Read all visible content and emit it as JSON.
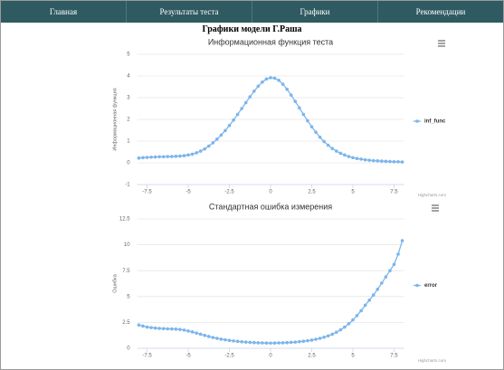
{
  "nav": {
    "items": [
      "Главная",
      "Результаты теста",
      "Графики",
      "Рекомендации"
    ]
  },
  "page_title": "Графики модели Г.Раша",
  "chart_data": [
    {
      "type": "line",
      "title": "Информационная функция теста",
      "y_label": "Информационная функция",
      "credits": "Highcharts.com",
      "grid": true,
      "legend": "right",
      "x": [
        -8,
        -7.75,
        -7.5,
        -7.25,
        -7,
        -6.75,
        -6.5,
        -6.25,
        -6,
        -5.75,
        -5.5,
        -5.25,
        -5,
        -4.75,
        -4.5,
        -4.25,
        -4,
        -3.75,
        -3.5,
        -3.25,
        -3,
        -2.75,
        -2.5,
        -2.25,
        -2,
        -1.75,
        -1.5,
        -1.25,
        -1,
        -0.75,
        -0.5,
        -0.25,
        0,
        0.25,
        0.5,
        0.75,
        1,
        1.25,
        1.5,
        1.75,
        2,
        2.25,
        2.5,
        2.75,
        3,
        3.25,
        3.5,
        3.75,
        4,
        4.25,
        4.5,
        4.75,
        5,
        5.25,
        5.5,
        5.75,
        6,
        6.25,
        6.5,
        6.75,
        7,
        7.25,
        7.5,
        7.75,
        8
      ],
      "series": [
        {
          "name": "inf_func",
          "color": "#7cb5ec",
          "values": [
            0.22,
            0.24,
            0.25,
            0.26,
            0.27,
            0.28,
            0.28,
            0.29,
            0.29,
            0.3,
            0.31,
            0.33,
            0.36,
            0.4,
            0.46,
            0.54,
            0.64,
            0.77,
            0.92,
            1.09,
            1.28,
            1.49,
            1.72,
            1.97,
            2.23,
            2.5,
            2.77,
            3.04,
            3.3,
            3.53,
            3.72,
            3.86,
            3.92,
            3.9,
            3.8,
            3.62,
            3.39,
            3.12,
            2.83,
            2.53,
            2.23,
            1.94,
            1.66,
            1.41,
            1.18,
            0.98,
            0.81,
            0.66,
            0.54,
            0.44,
            0.36,
            0.29,
            0.24,
            0.2,
            0.17,
            0.14,
            0.12,
            0.1,
            0.09,
            0.08,
            0.07,
            0.06,
            0.05,
            0.05,
            0.04
          ]
        }
      ],
      "xlim": [
        -8.1,
        8.1
      ],
      "xticks": [
        -7.5,
        -5,
        -2.5,
        0,
        2.5,
        5,
        7.5
      ],
      "ylim": [
        -1,
        5
      ],
      "yticks": [
        -1,
        0,
        1,
        2,
        3,
        4,
        5
      ]
    },
    {
      "type": "line",
      "title": "Стандартная ошибка измерения",
      "y_label": "Ошибка",
      "credits": "Highcharts.com",
      "grid": true,
      "legend": "right",
      "x": [
        -8,
        -7.75,
        -7.5,
        -7.25,
        -7,
        -6.75,
        -6.5,
        -6.25,
        -6,
        -5.75,
        -5.5,
        -5.25,
        -5,
        -4.75,
        -4.5,
        -4.25,
        -4,
        -3.75,
        -3.5,
        -3.25,
        -3,
        -2.75,
        -2.5,
        -2.25,
        -2,
        -1.75,
        -1.5,
        -1.25,
        -1,
        -0.75,
        -0.5,
        -0.25,
        0,
        0.25,
        0.5,
        0.75,
        1,
        1.25,
        1.5,
        1.75,
        2,
        2.25,
        2.5,
        2.75,
        3,
        3.25,
        3.5,
        3.75,
        4,
        4.25,
        4.5,
        4.75,
        5,
        5.25,
        5.5,
        5.75,
        6,
        6.25,
        6.5,
        6.75,
        7,
        7.25,
        7.5,
        7.75,
        8
      ],
      "series": [
        {
          "name": "error",
          "color": "#7cb5ec",
          "values": [
            2.25,
            2.15,
            2.05,
            2,
            1.95,
            1.92,
            1.9,
            1.88,
            1.87,
            1.85,
            1.82,
            1.76,
            1.67,
            1.58,
            1.47,
            1.36,
            1.25,
            1.14,
            1.04,
            0.96,
            0.88,
            0.82,
            0.76,
            0.71,
            0.67,
            0.63,
            0.6,
            0.57,
            0.55,
            0.53,
            0.52,
            0.51,
            0.5,
            0.51,
            0.52,
            0.53,
            0.55,
            0.57,
            0.6,
            0.64,
            0.68,
            0.73,
            0.79,
            0.87,
            0.96,
            1.07,
            1.2,
            1.36,
            1.55,
            1.78,
            2.05,
            2.37,
            2.74,
            3.16,
            3.63,
            4.16,
            4.65,
            5.15,
            5.7,
            6.3,
            6.9,
            7.5,
            8.1,
            9.1,
            10.4
          ]
        }
      ],
      "xlim": [
        -8.1,
        8.1
      ],
      "xticks": [
        -7.5,
        -5,
        -2.5,
        0,
        2.5,
        5,
        7.5
      ],
      "ylim": [
        0,
        12.5
      ],
      "yticks": [
        0,
        2.5,
        5,
        7.5,
        10,
        12.5
      ]
    }
  ]
}
